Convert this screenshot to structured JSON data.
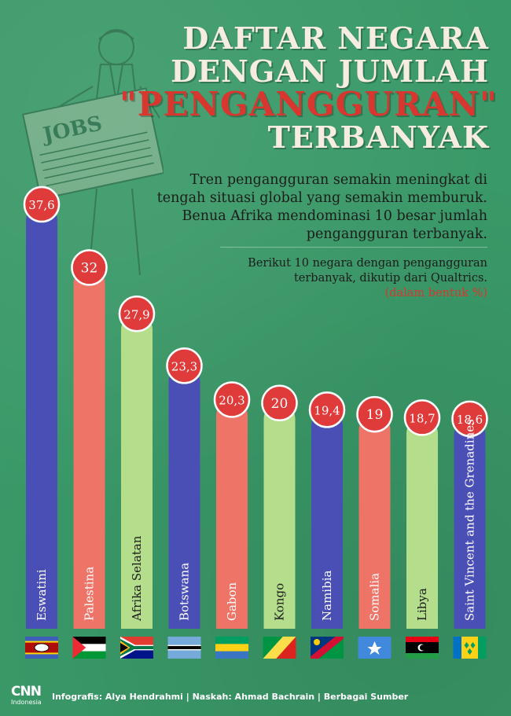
{
  "header": {
    "title_line1": "DAFTAR NEGARA",
    "title_line2": "DENGAN JUMLAH",
    "title_line3": "\"PENGANGGURAN\"",
    "title_line4": "TERBANYAK",
    "intro": "Tren pengangguran semakin meningkat di tengah situasi global yang semakin memburuk. Benua Afrika mendominasi 10 besar jumlah pengangguran terbanyak.",
    "subtitle": "Berikut 10 negara dengan pengangguran terbanyak, dikutip dari Qualtrics.",
    "unit_note": "(dalam bentuk %)"
  },
  "illustration": {
    "jobs_label": "JOBS"
  },
  "chart_data": {
    "type": "bar",
    "categories": [
      "Eswatini",
      "Palestina",
      "Afrika Selatan",
      "Botswana",
      "Gabon",
      "Kongo",
      "Namibia",
      "Somalia",
      "Libya",
      "Saint Vincent and the Grenadines"
    ],
    "values": [
      37.6,
      32,
      27.9,
      23.3,
      20.3,
      20,
      19.4,
      19,
      18.7,
      18.6
    ],
    "labels": [
      "37,6",
      "32",
      "27,9",
      "23,3",
      "20,3",
      "20",
      "19,4",
      "19",
      "18,7",
      "18,6"
    ],
    "unit": "%",
    "bar_colors": [
      "#4a4fb5",
      "#ee7468",
      "#b4dd8c",
      "#4a4fb5",
      "#ee7468",
      "#b4dd8c",
      "#4a4fb5",
      "#ee7468",
      "#b4dd8c",
      "#4a4fb5"
    ],
    "badge_color": "#df3b3b",
    "flags": [
      "eswatini-flag",
      "palestine-flag",
      "south-africa-flag",
      "botswana-flag",
      "gabon-flag",
      "congo-flag",
      "namibia-flag",
      "somalia-flag",
      "libya-flag",
      "saint-vincent-flag"
    ]
  },
  "footer": {
    "logo_main": "CNN",
    "logo_sub": "Indonesia",
    "credits": "Infografis: Alya Hendrahmi | Naskah: Ahmad Bachrain | Berbagai Sumber"
  }
}
